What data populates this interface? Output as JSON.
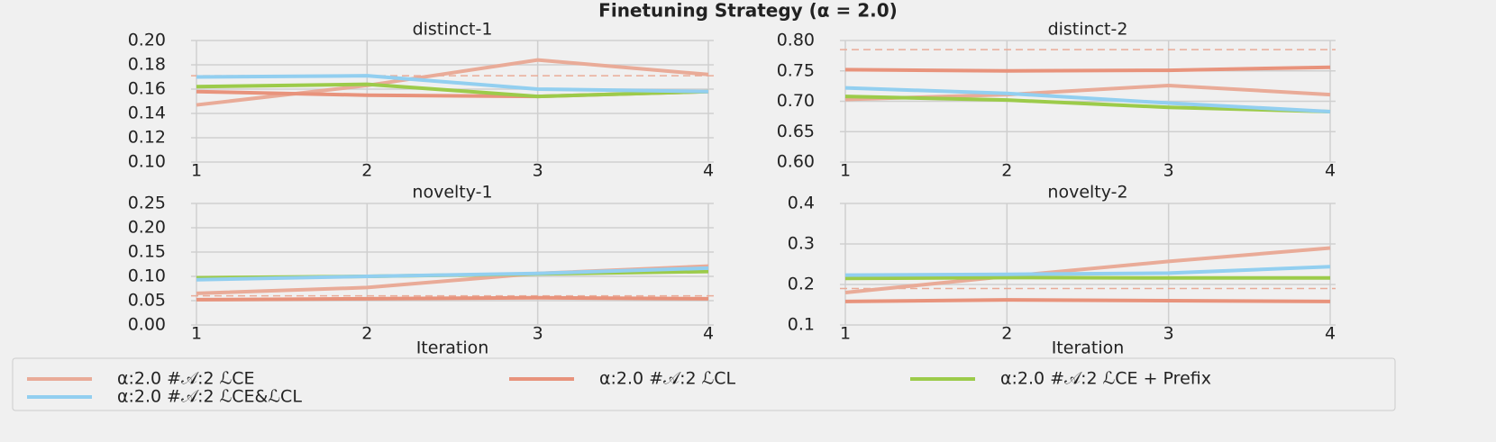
{
  "title": "Finetuning Strategy (α = 2.0)",
  "legend": [
    {
      "name": "α:2.0 #𝒜:2 ℒCE",
      "color": "#e9ab98"
    },
    {
      "name": "α:2.0 #𝒜:2 ℒCL",
      "color": "#e8937c"
    },
    {
      "name": "α:2.0 #𝒜:2 ℒCE + Prefix",
      "color": "#9ccb4a"
    },
    {
      "name": "α:2.0 #𝒜:2 ℒCE&ℒCL",
      "color": "#92cff0"
    }
  ],
  "chart_data": [
    {
      "type": "line",
      "title": "distinct-1",
      "x": [
        1,
        2,
        3,
        4
      ],
      "xlim": [
        1,
        4
      ],
      "xticks": [
        1,
        2,
        3,
        4
      ],
      "ylim": [
        0.1,
        0.2
      ],
      "yticks": [
        {
          "value": 0.1,
          "label": "0.10"
        },
        0.12,
        0.14,
        0.16,
        0.18,
        {
          "value": 0.2,
          "label": "0.20"
        }
      ],
      "reference_line": 0.171,
      "series": [
        {
          "values": [
            0.147,
            0.163,
            0.184,
            0.172
          ]
        },
        {
          "values": [
            0.158,
            0.155,
            0.154,
            0.158
          ]
        },
        {
          "values": [
            0.162,
            0.164,
            0.154,
            0.158
          ]
        },
        {
          "values": [
            0.17,
            0.171,
            0.16,
            0.158
          ]
        }
      ]
    },
    {
      "type": "line",
      "title": "distinct-2",
      "x": [
        1,
        2,
        3,
        4
      ],
      "xlim": [
        1,
        4
      ],
      "xticks": [
        1,
        2,
        3,
        4
      ],
      "ylim": [
        0.6,
        0.8
      ],
      "yticks": [
        {
          "value": 0.6,
          "label": "0.60"
        },
        0.65,
        {
          "value": 0.7,
          "label": "0.70"
        },
        0.75,
        {
          "value": 0.8,
          "label": "0.80"
        }
      ],
      "reference_line": 0.785,
      "series": [
        {
          "values": [
            0.703,
            0.711,
            0.726,
            0.711
          ]
        },
        {
          "values": [
            0.752,
            0.75,
            0.751,
            0.756
          ]
        },
        {
          "values": [
            0.708,
            0.702,
            0.69,
            0.683
          ]
        },
        {
          "values": [
            0.722,
            0.713,
            0.697,
            0.683
          ]
        }
      ]
    },
    {
      "type": "line",
      "title": "novelty-1",
      "x": [
        1,
        2,
        3,
        4
      ],
      "xlim": [
        1,
        4
      ],
      "xticks": [
        1,
        2,
        3,
        4
      ],
      "xlabel": "Iteration",
      "ylim": [
        0,
        0.25
      ],
      "yticks": [
        {
          "value": 0,
          "label": "0.00"
        },
        0.05,
        {
          "value": 0.1,
          "label": "0.10"
        },
        0.15,
        {
          "value": 0.2,
          "label": "0.20"
        },
        0.25
      ],
      "reference_line": 0.06,
      "series": [
        {
          "values": [
            0.065,
            0.077,
            0.106,
            0.121
          ]
        },
        {
          "values": [
            0.052,
            0.054,
            0.056,
            0.054
          ]
        },
        {
          "values": [
            0.097,
            0.1,
            0.105,
            0.11
          ]
        },
        {
          "values": [
            0.093,
            0.1,
            0.106,
            0.117
          ]
        }
      ]
    },
    {
      "type": "line",
      "title": "novelty-2",
      "x": [
        1,
        2,
        3,
        4
      ],
      "xlim": [
        1,
        4
      ],
      "xticks": [
        1,
        2,
        3,
        4
      ],
      "xlabel": "Iteration",
      "ylim": [
        0.1,
        0.4
      ],
      "yticks": [
        0.1,
        0.2,
        0.3,
        0.4
      ],
      "reference_line": 0.19,
      "series": [
        {
          "values": [
            0.18,
            0.22,
            0.257,
            0.29
          ]
        },
        {
          "values": [
            0.158,
            0.162,
            0.16,
            0.158
          ]
        },
        {
          "values": [
            0.215,
            0.217,
            0.216,
            0.216
          ]
        },
        {
          "values": [
            0.223,
            0.225,
            0.228,
            0.244
          ]
        }
      ]
    }
  ]
}
